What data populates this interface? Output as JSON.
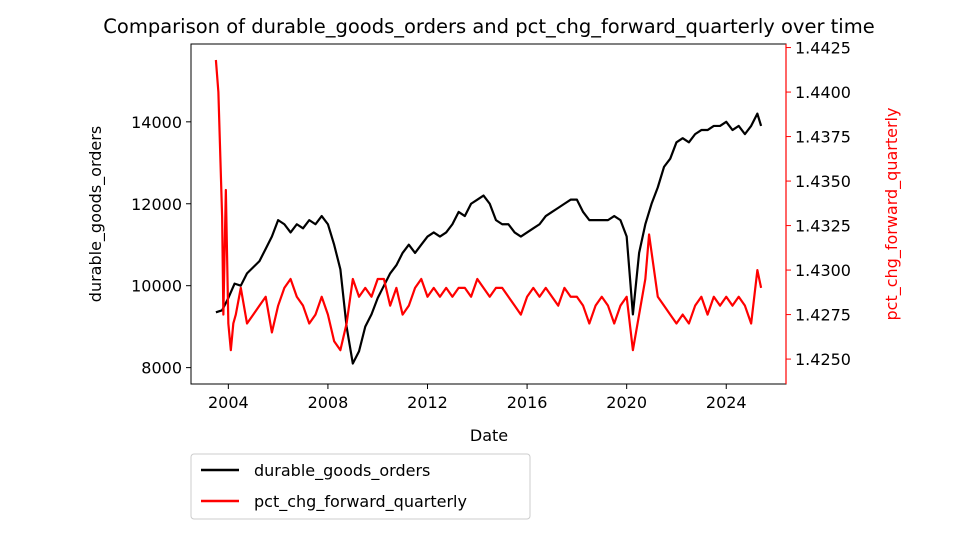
{
  "chart_data": {
    "type": "line",
    "title": "Comparison of durable_goods_orders and pct_chg_forward_quarterly over time",
    "xlabel": "Date",
    "ylabel_left": "durable_goods_orders",
    "ylabel_right": "pct_chg_forward_quarterly",
    "xlim": [
      2002.5,
      2026.4
    ],
    "ylim_left": [
      7600,
      15900
    ],
    "ylim_right": [
      1.4236,
      1.4427
    ],
    "x_ticks": [
      2004,
      2008,
      2012,
      2016,
      2020,
      2024
    ],
    "x_tick_labels": [
      "2004",
      "2008",
      "2012",
      "2016",
      "2020",
      "2024"
    ],
    "y_left_ticks": [
      8000,
      10000,
      12000,
      14000
    ],
    "y_left_tick_labels": [
      "8000",
      "10000",
      "12000",
      "14000"
    ],
    "y_right_ticks": [
      1.425,
      1.4275,
      1.43,
      1.4325,
      1.435,
      1.4375,
      1.44,
      1.4425
    ],
    "y_right_tick_labels": [
      "1.4250",
      "1.4275",
      "1.4300",
      "1.4325",
      "1.4350",
      "1.4375",
      "1.4400",
      "1.4425"
    ],
    "grid": false,
    "legend_position": "below-left",
    "series": [
      {
        "name": "durable_goods_orders",
        "axis": "left",
        "color": "#000000",
        "x": [
          2003.5,
          2003.75,
          2004.0,
          2004.25,
          2004.5,
          2004.75,
          2005.0,
          2005.25,
          2005.5,
          2005.75,
          2006.0,
          2006.25,
          2006.5,
          2006.75,
          2007.0,
          2007.25,
          2007.5,
          2007.75,
          2008.0,
          2008.25,
          2008.5,
          2008.75,
          2009.0,
          2009.25,
          2009.5,
          2009.75,
          2010.0,
          2010.25,
          2010.5,
          2010.75,
          2011.0,
          2011.25,
          2011.5,
          2011.75,
          2012.0,
          2012.25,
          2012.5,
          2012.75,
          2013.0,
          2013.25,
          2013.5,
          2013.75,
          2014.0,
          2014.25,
          2014.5,
          2014.75,
          2015.0,
          2015.25,
          2015.5,
          2015.75,
          2016.0,
          2016.25,
          2016.5,
          2016.75,
          2017.0,
          2017.25,
          2017.5,
          2017.75,
          2018.0,
          2018.25,
          2018.5,
          2018.75,
          2019.0,
          2019.25,
          2019.5,
          2019.75,
          2020.0,
          2020.25,
          2020.5,
          2020.75,
          2021.0,
          2021.25,
          2021.5,
          2021.75,
          2022.0,
          2022.25,
          2022.5,
          2022.75,
          2023.0,
          2023.25,
          2023.5,
          2023.75,
          2024.0,
          2024.25,
          2024.5,
          2024.75,
          2025.0,
          2025.25,
          2025.4
        ],
        "y": [
          9350,
          9400,
          9700,
          10050,
          10000,
          10300,
          10450,
          10600,
          10900,
          11200,
          11600,
          11500,
          11300,
          11500,
          11400,
          11600,
          11500,
          11700,
          11500,
          11000,
          10400,
          9000,
          8100,
          8400,
          9000,
          9300,
          9700,
          10000,
          10300,
          10500,
          10800,
          11000,
          10800,
          11000,
          11200,
          11300,
          11200,
          11300,
          11500,
          11800,
          11700,
          12000,
          12100,
          12200,
          12000,
          11600,
          11500,
          11500,
          11300,
          11200,
          11300,
          11400,
          11500,
          11700,
          11800,
          11900,
          12000,
          12100,
          12100,
          11800,
          11600,
          11600,
          11600,
          11600,
          11700,
          11600,
          11200,
          9300,
          10800,
          11500,
          12000,
          12400,
          12900,
          13100,
          13500,
          13600,
          13500,
          13700,
          13800,
          13800,
          13900,
          13900,
          14000,
          13800,
          13900,
          13700,
          13900,
          14200,
          13900
        ]
      },
      {
        "name": "pct_chg_forward_quarterly",
        "axis": "right",
        "color": "#ff0000",
        "x": [
          2003.5,
          2003.6,
          2003.75,
          2003.8,
          2003.9,
          2004.0,
          2004.1,
          2004.2,
          2004.3,
          2004.5,
          2004.75,
          2005.0,
          2005.25,
          2005.5,
          2005.75,
          2006.0,
          2006.25,
          2006.5,
          2006.75,
          2007.0,
          2007.25,
          2007.5,
          2007.75,
          2008.0,
          2008.25,
          2008.5,
          2008.75,
          2009.0,
          2009.25,
          2009.5,
          2009.75,
          2010.0,
          2010.25,
          2010.5,
          2010.75,
          2011.0,
          2011.25,
          2011.5,
          2011.75,
          2012.0,
          2012.25,
          2012.5,
          2012.75,
          2013.0,
          2013.25,
          2013.5,
          2013.75,
          2014.0,
          2014.25,
          2014.5,
          2014.75,
          2015.0,
          2015.25,
          2015.5,
          2015.75,
          2016.0,
          2016.25,
          2016.5,
          2016.75,
          2017.0,
          2017.25,
          2017.5,
          2017.75,
          2018.0,
          2018.25,
          2018.5,
          2018.75,
          2019.0,
          2019.25,
          2019.5,
          2019.75,
          2020.0,
          2020.25,
          2020.5,
          2020.75,
          2020.9,
          2021.0,
          2021.25,
          2021.5,
          2021.75,
          2022.0,
          2022.25,
          2022.5,
          2022.75,
          2023.0,
          2023.25,
          2023.5,
          2023.75,
          2024.0,
          2024.25,
          2024.5,
          2024.75,
          2025.0,
          2025.25,
          2025.4
        ],
        "y": [
          1.4418,
          1.44,
          1.433,
          1.4275,
          1.4345,
          1.427,
          1.4255,
          1.427,
          1.4275,
          1.429,
          1.427,
          1.4275,
          1.428,
          1.4285,
          1.4265,
          1.428,
          1.429,
          1.4295,
          1.4285,
          1.428,
          1.427,
          1.4275,
          1.4285,
          1.4275,
          1.426,
          1.4255,
          1.427,
          1.4295,
          1.4285,
          1.429,
          1.4285,
          1.4295,
          1.4295,
          1.428,
          1.429,
          1.4275,
          1.428,
          1.429,
          1.4295,
          1.4285,
          1.429,
          1.4285,
          1.429,
          1.4285,
          1.429,
          1.429,
          1.4285,
          1.4295,
          1.429,
          1.4285,
          1.429,
          1.429,
          1.4285,
          1.428,
          1.4275,
          1.4285,
          1.429,
          1.4285,
          1.429,
          1.4285,
          1.428,
          1.429,
          1.4285,
          1.4285,
          1.428,
          1.427,
          1.428,
          1.4285,
          1.428,
          1.427,
          1.428,
          1.4285,
          1.4255,
          1.4275,
          1.4295,
          1.432,
          1.431,
          1.4285,
          1.428,
          1.4275,
          1.427,
          1.4275,
          1.427,
          1.428,
          1.4285,
          1.4275,
          1.4285,
          1.428,
          1.4285,
          1.428,
          1.4285,
          1.428,
          1.427,
          1.43,
          1.429
        ]
      }
    ]
  }
}
